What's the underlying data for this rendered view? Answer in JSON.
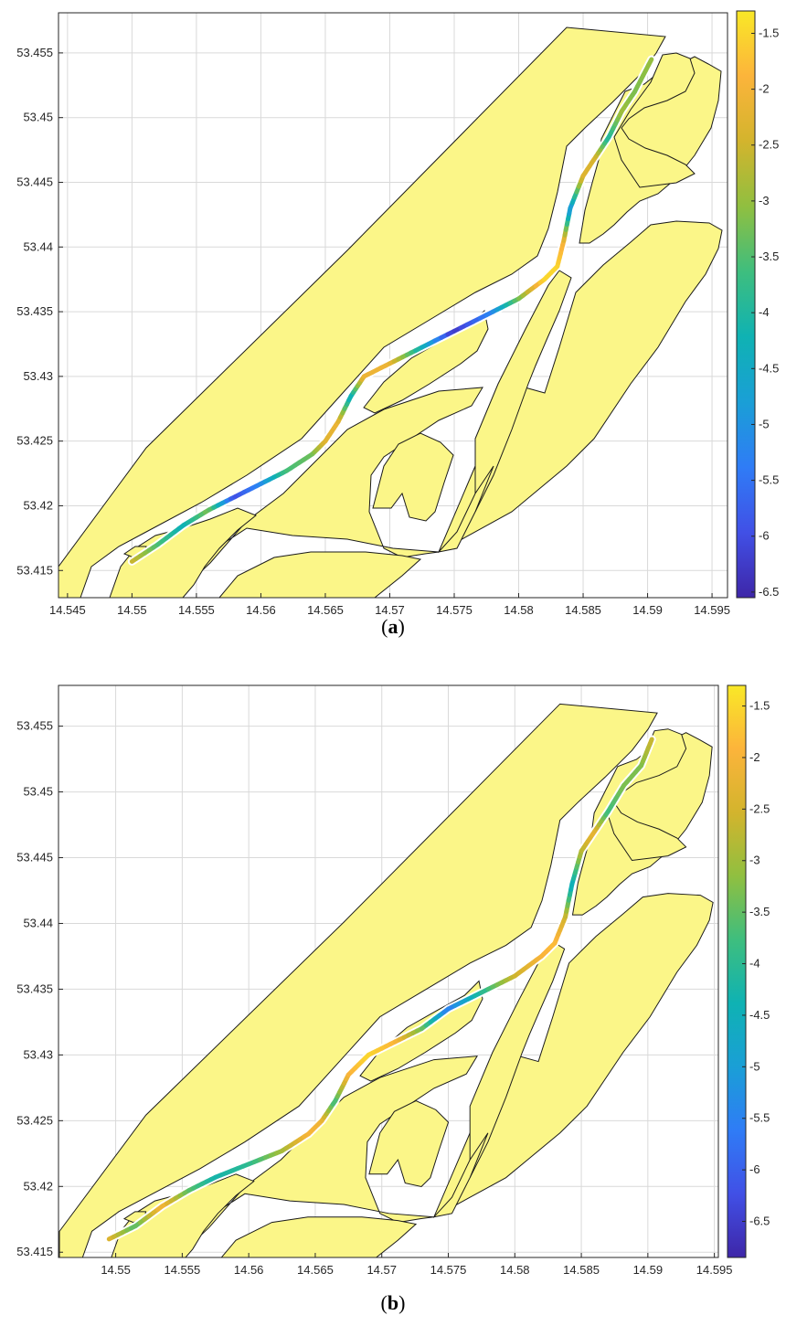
{
  "figure": {
    "captions": [
      {
        "open": "(",
        "letter": "a",
        "close": ")"
      },
      {
        "open": "(",
        "letter": "b",
        "close": ")"
      }
    ]
  },
  "colors": {
    "land": "#fbf688",
    "water": "#ffffff",
    "outline": "#1a1a1a",
    "grid": "#d9d9d9",
    "colormap": [
      "#3e26a8",
      "#4150e6",
      "#2f7cf6",
      "#1a9fd6",
      "#0fb2b3",
      "#3ebe7e",
      "#90bf40",
      "#d3b42d",
      "#fcb43b",
      "#f9e827"
    ]
  },
  "chart_data": [
    {
      "type": "heatmap",
      "panel": "a",
      "x_ticks": [
        "14.545",
        "14.55",
        "14.555",
        "14.56",
        "14.565",
        "14.57",
        "14.575",
        "14.58",
        "14.585",
        "14.59",
        "14.595"
      ],
      "y_ticks": [
        "53.415",
        "53.42",
        "53.425",
        "53.43",
        "53.435",
        "53.44",
        "53.445",
        "53.45",
        "53.455"
      ],
      "xlim": [
        14.5443,
        14.5962
      ],
      "ylim": [
        53.4129,
        53.4581
      ],
      "colorbar": {
        "ticks": [
          "-1.5",
          "-2",
          "-2.5",
          "-3",
          "-3.5",
          "-4",
          "-4.5",
          "-5",
          "-5.5",
          "-6",
          "-6.5"
        ],
        "clim": [
          -6.55,
          -1.3
        ]
      },
      "grid": true,
      "track": {
        "x": [
          14.55,
          14.552,
          14.554,
          14.556,
          14.558,
          14.56,
          14.562,
          14.564,
          14.565,
          14.566,
          14.567,
          14.568,
          14.57,
          14.572,
          14.575,
          14.578,
          14.58,
          14.582,
          14.583,
          14.5835,
          14.584,
          14.585,
          14.586,
          14.587,
          14.588,
          14.589,
          14.5903
        ],
        "y": [
          53.4157,
          53.417,
          53.4185,
          53.4197,
          53.4207,
          53.4217,
          53.4227,
          53.424,
          53.425,
          53.4265,
          53.4285,
          53.43,
          53.431,
          53.432,
          53.4335,
          53.435,
          53.436,
          53.4375,
          53.4385,
          53.4405,
          53.443,
          53.4455,
          53.447,
          53.4485,
          53.4505,
          53.452,
          53.4545
        ],
        "depth": [
          -2.5,
          -3.5,
          -4.3,
          -3.2,
          -6.0,
          -5.2,
          -3.6,
          -3.3,
          -2.3,
          -2.1,
          -4.4,
          -2.1,
          -2.1,
          -3.8,
          -6.3,
          -5.2,
          -3.3,
          -1.5,
          -1.5,
          -2.0,
          -5.0,
          -2.3,
          -2.4,
          -4.0,
          -2.9,
          -3.2,
          -3.0
        ]
      }
    },
    {
      "type": "heatmap",
      "panel": "b",
      "x_ticks": [
        "14.55",
        "14.555",
        "14.56",
        "14.565",
        "14.57",
        "14.575",
        "14.58",
        "14.585",
        "14.59",
        "14.595"
      ],
      "y_ticks": [
        "53.415",
        "53.42",
        "53.425",
        "53.43",
        "53.435",
        "53.44",
        "53.445",
        "53.45",
        "53.455"
      ],
      "xlim": [
        14.5457,
        14.5953
      ],
      "ylim": [
        53.4146,
        53.4581
      ],
      "colorbar": {
        "ticks": [
          "-1.5",
          "-2",
          "-2.5",
          "-3",
          "-3.5",
          "-4",
          "-4.5",
          "-5",
          "-5.5",
          "-6",
          "-6.5"
        ],
        "clim": [
          -6.85,
          -1.3
        ]
      },
      "grid": true,
      "track": {
        "x": [
          14.5495,
          14.5515,
          14.5535,
          14.5555,
          14.5575,
          14.56,
          14.5625,
          14.5645,
          14.5655,
          14.5665,
          14.5675,
          14.569,
          14.571,
          14.573,
          14.575,
          14.578,
          14.58,
          14.582,
          14.583,
          14.5838,
          14.5843,
          14.585,
          14.586,
          14.587,
          14.5882,
          14.5895,
          14.5903
        ],
        "y": [
          53.416,
          53.417,
          53.4185,
          53.4197,
          53.4207,
          53.4217,
          53.4227,
          53.424,
          53.425,
          53.4265,
          53.4285,
          53.43,
          53.431,
          53.432,
          53.4335,
          53.435,
          53.436,
          53.4375,
          53.4385,
          53.4405,
          53.443,
          53.4455,
          53.447,
          53.4485,
          53.4505,
          53.452,
          53.454
        ],
        "depth": [
          -2.3,
          -3.6,
          -2.0,
          -3.5,
          -4.3,
          -4.0,
          -3.0,
          -2.0,
          -2.1,
          -3.8,
          -2.0,
          -1.5,
          -1.9,
          -3.3,
          -5.6,
          -3.8,
          -2.6,
          -2.0,
          -1.8,
          -2.5,
          -4.6,
          -2.8,
          -2.2,
          -3.8,
          -3.3,
          -3.3,
          -2.6
        ]
      }
    }
  ]
}
